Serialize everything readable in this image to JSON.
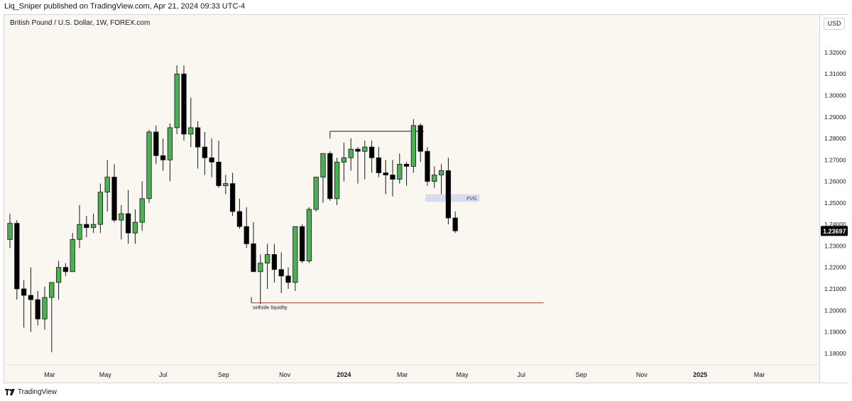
{
  "header": {
    "publisher_line": "Liq_Sniper published on TradingView.com, Apr 21, 2024 09:33 UTC-4"
  },
  "symbol": {
    "title": "British Pound / U.S. Dollar, 1W, FOREX.com"
  },
  "currency": "USD",
  "footer": {
    "brand": "TradingView"
  },
  "colors": {
    "up": "#4caf50",
    "down": "#000000",
    "background": "#faf7f0",
    "fvg": "#d8dcf0",
    "sellside_line": "#c0392b",
    "last_price_bg": "#000000"
  },
  "chart_data": {
    "type": "candlestick",
    "timeframe": "1W",
    "y_ticks": [
      {
        "value": 1.32,
        "label": "1.32000"
      },
      {
        "value": 1.31,
        "label": "1.31000"
      },
      {
        "value": 1.3,
        "label": "1.30000"
      },
      {
        "value": 1.29,
        "label": "1.29000"
      },
      {
        "value": 1.28,
        "label": "1.28000"
      },
      {
        "value": 1.27,
        "label": "1.27000"
      },
      {
        "value": 1.26,
        "label": "1.26000"
      },
      {
        "value": 1.25,
        "label": "1.25000"
      },
      {
        "value": 1.24,
        "label": "1.24000"
      },
      {
        "value": 1.23,
        "label": "1.23000"
      },
      {
        "value": 1.22,
        "label": "1.22000"
      },
      {
        "value": 1.21,
        "label": "1.21000"
      },
      {
        "value": 1.2,
        "label": "1.20000"
      },
      {
        "value": 1.19,
        "label": "1.19000"
      },
      {
        "value": 1.18,
        "label": "1.18000"
      }
    ],
    "ylim": [
      1.175,
      1.3345
    ],
    "x_ticks": [
      {
        "index": 5.7,
        "label": "Mar",
        "bold": false
      },
      {
        "index": 13.7,
        "label": "May",
        "bold": false
      },
      {
        "index": 22.0,
        "label": "Jul",
        "bold": false
      },
      {
        "index": 30.7,
        "label": "Sep",
        "bold": false
      },
      {
        "index": 39.5,
        "label": "Nov",
        "bold": false
      },
      {
        "index": 48.0,
        "label": "2024",
        "bold": true
      },
      {
        "index": 56.4,
        "label": "Mar",
        "bold": false
      },
      {
        "index": 65.0,
        "label": "May",
        "bold": false
      },
      {
        "index": 73.5,
        "label": "Jul",
        "bold": false
      },
      {
        "index": 82.1,
        "label": "Sep",
        "bold": false
      },
      {
        "index": 90.8,
        "label": "Nov",
        "bold": false
      },
      {
        "index": 99.2,
        "label": "2025",
        "bold": true
      },
      {
        "index": 107.7,
        "label": "Mar",
        "bold": false
      }
    ],
    "candles": [
      [
        1.233,
        1.245,
        1.229,
        1.2405
      ],
      [
        1.2405,
        1.242,
        1.205,
        1.21
      ],
      [
        1.21,
        1.214,
        1.192,
        1.207
      ],
      [
        1.207,
        1.22,
        1.19,
        1.205
      ],
      [
        1.205,
        1.209,
        1.193,
        1.196
      ],
      [
        1.196,
        1.211,
        1.191,
        1.206
      ],
      [
        1.206,
        1.212,
        1.1805,
        1.213
      ],
      [
        1.213,
        1.223,
        1.205,
        1.22
      ],
      [
        1.22,
        1.222,
        1.216,
        1.218
      ],
      [
        1.218,
        1.236,
        1.218,
        1.233
      ],
      [
        1.233,
        1.249,
        1.229,
        1.24
      ],
      [
        1.24,
        1.244,
        1.234,
        1.2385
      ],
      [
        1.2385,
        1.245,
        1.236,
        1.24
      ],
      [
        1.24,
        1.259,
        1.236,
        1.255
      ],
      [
        1.255,
        1.27,
        1.246,
        1.262
      ],
      [
        1.262,
        1.268,
        1.241,
        1.242
      ],
      [
        1.242,
        1.249,
        1.233,
        1.245
      ],
      [
        1.245,
        1.256,
        1.231,
        1.236
      ],
      [
        1.236,
        1.247,
        1.231,
        1.241
      ],
      [
        1.241,
        1.26,
        1.237,
        1.252
      ],
      [
        1.252,
        1.284,
        1.25,
        1.283
      ],
      [
        1.283,
        1.286,
        1.268,
        1.272
      ],
      [
        1.272,
        1.28,
        1.265,
        1.27
      ],
      [
        1.27,
        1.287,
        1.26,
        1.285
      ],
      [
        1.285,
        1.314,
        1.282,
        1.31
      ],
      [
        1.31,
        1.314,
        1.279,
        1.282
      ],
      [
        1.282,
        1.299,
        1.276,
        1.285
      ],
      [
        1.285,
        1.288,
        1.266,
        1.276
      ],
      [
        1.276,
        1.283,
        1.263,
        1.271
      ],
      [
        1.271,
        1.28,
        1.262,
        1.269
      ],
      [
        1.269,
        1.279,
        1.257,
        1.258
      ],
      [
        1.258,
        1.263,
        1.254,
        1.259
      ],
      [
        1.259,
        1.264,
        1.244,
        1.246
      ],
      [
        1.246,
        1.252,
        1.238,
        1.239
      ],
      [
        1.239,
        1.248,
        1.229,
        1.231
      ],
      [
        1.231,
        1.241,
        1.218,
        1.218
      ],
      [
        1.218,
        1.226,
        1.203,
        1.222
      ],
      [
        1.222,
        1.231,
        1.21,
        1.226
      ],
      [
        1.226,
        1.231,
        1.213,
        1.219
      ],
      [
        1.219,
        1.227,
        1.208,
        1.216
      ],
      [
        1.216,
        1.22,
        1.21,
        1.213
      ],
      [
        1.213,
        1.239,
        1.209,
        1.239
      ],
      [
        1.239,
        1.24,
        1.222,
        1.223
      ],
      [
        1.223,
        1.248,
        1.222,
        1.247
      ],
      [
        1.247,
        1.262,
        1.246,
        1.262
      ],
      [
        1.262,
        1.273,
        1.25,
        1.273
      ],
      [
        1.273,
        1.274,
        1.251,
        1.252
      ],
      [
        1.252,
        1.271,
        1.249,
        1.269
      ],
      [
        1.269,
        1.278,
        1.26,
        1.271
      ],
      [
        1.271,
        1.28,
        1.265,
        1.275
      ],
      [
        1.275,
        1.276,
        1.259,
        1.274
      ],
      [
        1.274,
        1.279,
        1.261,
        1.276
      ],
      [
        1.276,
        1.279,
        1.264,
        1.271
      ],
      [
        1.271,
        1.276,
        1.262,
        1.264
      ],
      [
        1.264,
        1.27,
        1.254,
        1.263
      ],
      [
        1.263,
        1.27,
        1.253,
        1.261
      ],
      [
        1.261,
        1.273,
        1.259,
        1.268
      ],
      [
        1.268,
        1.269,
        1.258,
        1.267
      ],
      [
        1.267,
        1.289,
        1.264,
        1.286
      ],
      [
        1.286,
        1.287,
        1.269,
        1.274
      ],
      [
        1.274,
        1.276,
        1.258,
        1.26
      ],
      [
        1.26,
        1.267,
        1.257,
        1.263
      ],
      [
        1.263,
        1.268,
        1.254,
        1.265
      ],
      [
        1.265,
        1.271,
        1.24,
        1.243
      ],
      [
        1.243,
        1.246,
        1.236,
        1.237
      ]
    ],
    "annotations": {
      "resistance_line": {
        "price": 1.2833,
        "from_index": 46,
        "to_index": 59.5
      },
      "fvg": {
        "label": "FVG",
        "low": 1.2505,
        "high": 1.254,
        "from_index": 59.7,
        "to_index": 67.5
      },
      "sellside_liquidity": {
        "label": "sellside liquidity",
        "price": 1.2035,
        "from_index": 34.7,
        "to_index": 76.7
      }
    },
    "last_price": {
      "value": 1.23697,
      "label": "1.23697"
    }
  }
}
